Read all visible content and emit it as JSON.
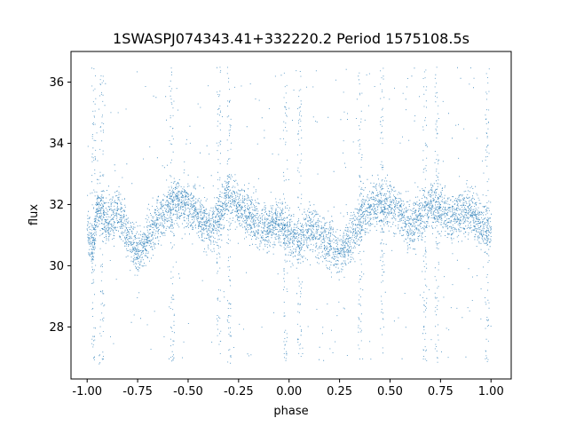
{
  "chart_data": {
    "type": "scatter",
    "title": "1SWASPJ074343.41+332220.2 Period 1575108.5s",
    "xlabel": "phase",
    "ylabel": "flux",
    "xlim": [
      -1.08,
      1.1
    ],
    "ylim": [
      26.3,
      37.0
    ],
    "x_ticks": [
      "-1.00",
      "-0.75",
      "-0.50",
      "-0.25",
      "0.00",
      "0.25",
      "0.50",
      "0.75",
      "1.00"
    ],
    "y_ticks": [
      "28",
      "30",
      "32",
      "34",
      "36"
    ],
    "grid": false,
    "point_color": "#1f77b4",
    "series": [
      {
        "phase_range": [
          -1.0,
          1.0
        ],
        "flux_center": 31.5,
        "flux_core_range": [
          29.8,
          33.2
        ],
        "flux_outlier_range": [
          26.8,
          36.5
        ],
        "points": [
          [
            -1.0,
            31.2
          ],
          [
            -0.97,
            30.6
          ],
          [
            -0.95,
            32.0
          ],
          [
            -0.9,
            31.4
          ],
          [
            -0.85,
            31.8
          ],
          [
            -0.8,
            31.0
          ],
          [
            -0.75,
            30.4
          ],
          [
            -0.7,
            30.9
          ],
          [
            -0.65,
            31.5
          ],
          [
            -0.6,
            31.9
          ],
          [
            -0.55,
            32.2
          ],
          [
            -0.5,
            32.0
          ],
          [
            -0.45,
            31.7
          ],
          [
            -0.4,
            31.2
          ],
          [
            -0.35,
            31.6
          ],
          [
            -0.3,
            32.3
          ],
          [
            -0.25,
            32.0
          ],
          [
            -0.2,
            31.6
          ],
          [
            -0.15,
            31.4
          ],
          [
            -0.1,
            31.2
          ],
          [
            -0.05,
            31.5
          ],
          [
            0.0,
            31.0
          ],
          [
            0.05,
            30.8
          ],
          [
            0.1,
            31.3
          ],
          [
            0.15,
            31.0
          ],
          [
            0.2,
            30.7
          ],
          [
            0.25,
            30.4
          ],
          [
            0.3,
            30.9
          ],
          [
            0.35,
            31.5
          ],
          [
            0.4,
            31.9
          ],
          [
            0.45,
            32.1
          ],
          [
            0.5,
            32.0
          ],
          [
            0.55,
            31.8
          ],
          [
            0.6,
            31.2
          ],
          [
            0.65,
            31.6
          ],
          [
            0.7,
            32.1
          ],
          [
            0.75,
            31.9
          ],
          [
            0.8,
            31.6
          ],
          [
            0.85,
            31.7
          ],
          [
            0.9,
            31.8
          ],
          [
            0.95,
            31.3
          ],
          [
            1.0,
            31.2
          ]
        ]
      }
    ]
  }
}
